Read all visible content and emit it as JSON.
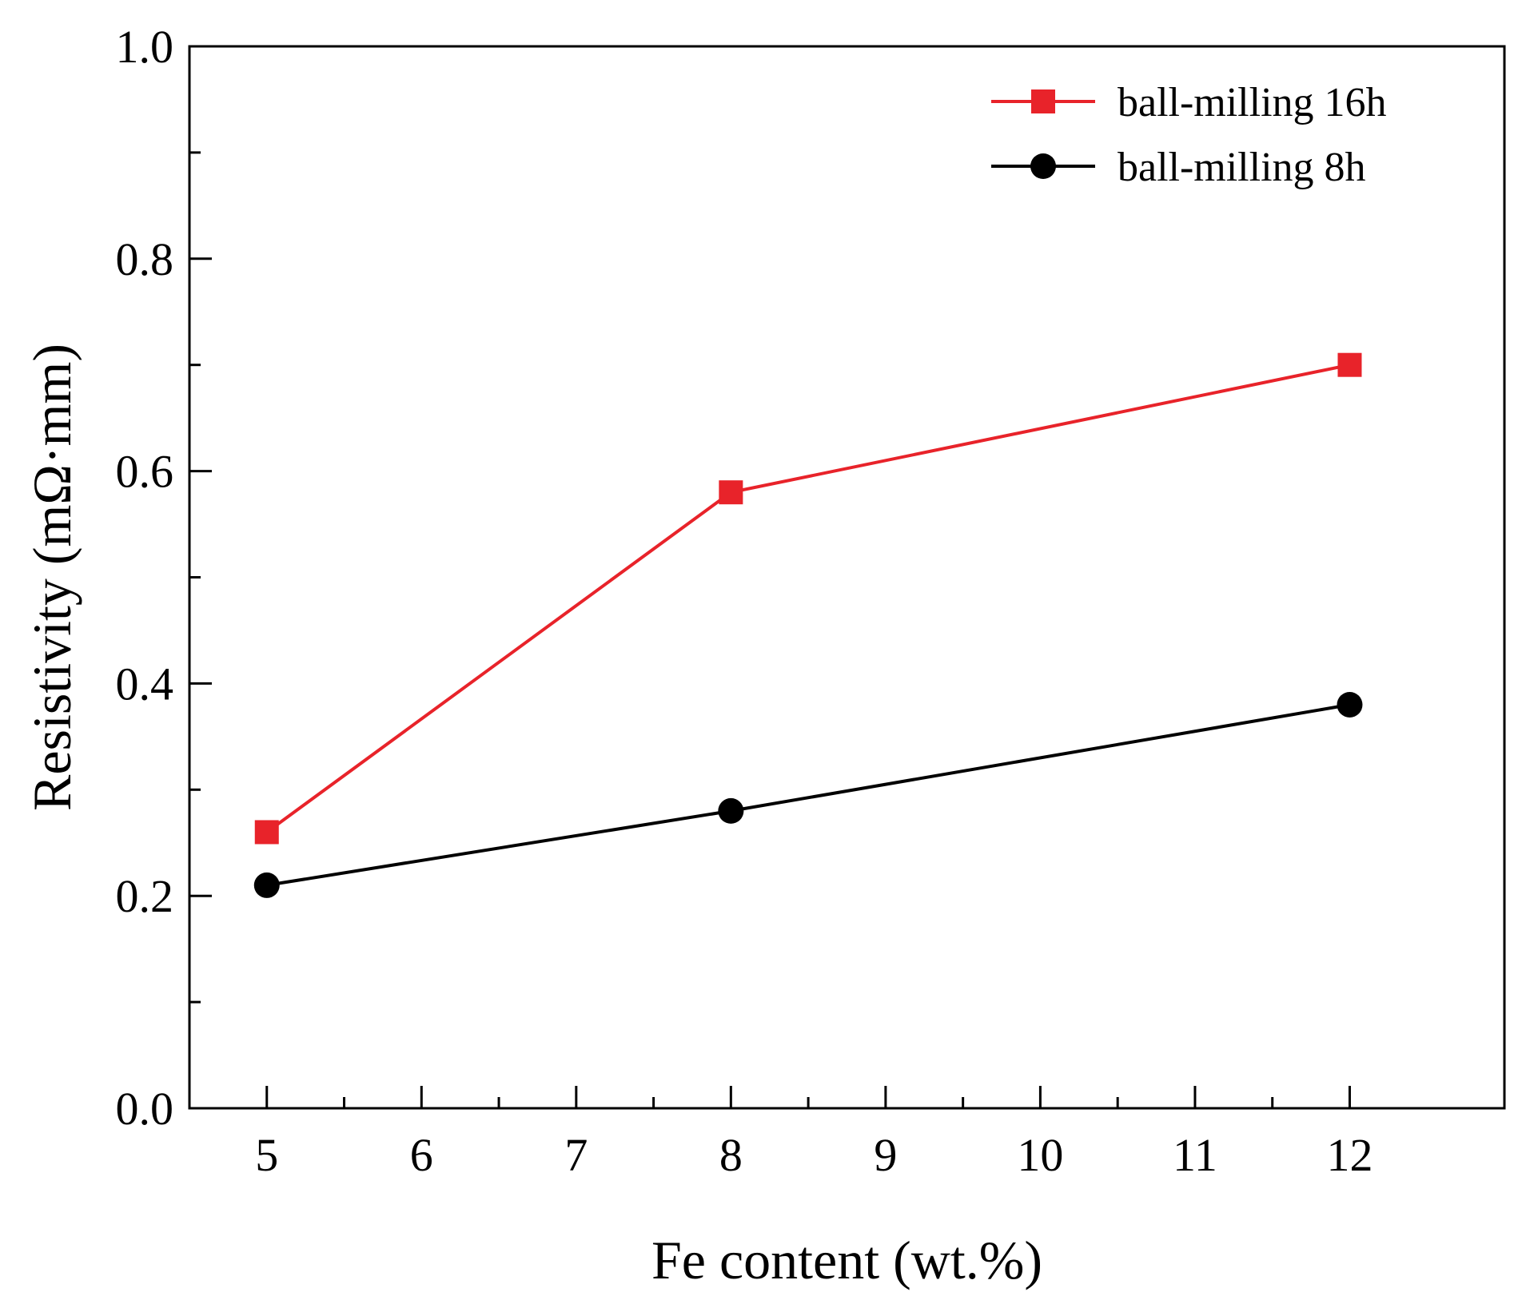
{
  "chart_data": {
    "type": "line",
    "title": "",
    "xlabel": "Fe content (wt.%)",
    "ylabel": "Resistivity (mΩ·mm)",
    "xlim": [
      4.5,
      13.0
    ],
    "ylim": [
      0.0,
      1.0
    ],
    "x_major_ticks": [
      5,
      6,
      7,
      8,
      9,
      10,
      11,
      12
    ],
    "x_tick_labels": [
      "5",
      "6",
      "7",
      "8",
      "9",
      "10",
      "11",
      "12"
    ],
    "y_major_ticks": [
      0.0,
      0.2,
      0.4,
      0.6,
      0.8,
      1.0
    ],
    "y_tick_labels": [
      "0.0",
      "0.2",
      "0.4",
      "0.6",
      "0.8",
      "1.0"
    ],
    "grid": false,
    "legend_position": "top-right",
    "series": [
      {
        "name": "ball-milling 16h",
        "color": "#e8232a",
        "marker": "square",
        "x": [
          5,
          8,
          12
        ],
        "values": [
          0.26,
          0.58,
          0.7
        ]
      },
      {
        "name": "ball-milling 8h",
        "color": "#000000",
        "marker": "circle",
        "x": [
          5,
          8,
          12
        ],
        "values": [
          0.21,
          0.28,
          0.38
        ]
      }
    ]
  }
}
